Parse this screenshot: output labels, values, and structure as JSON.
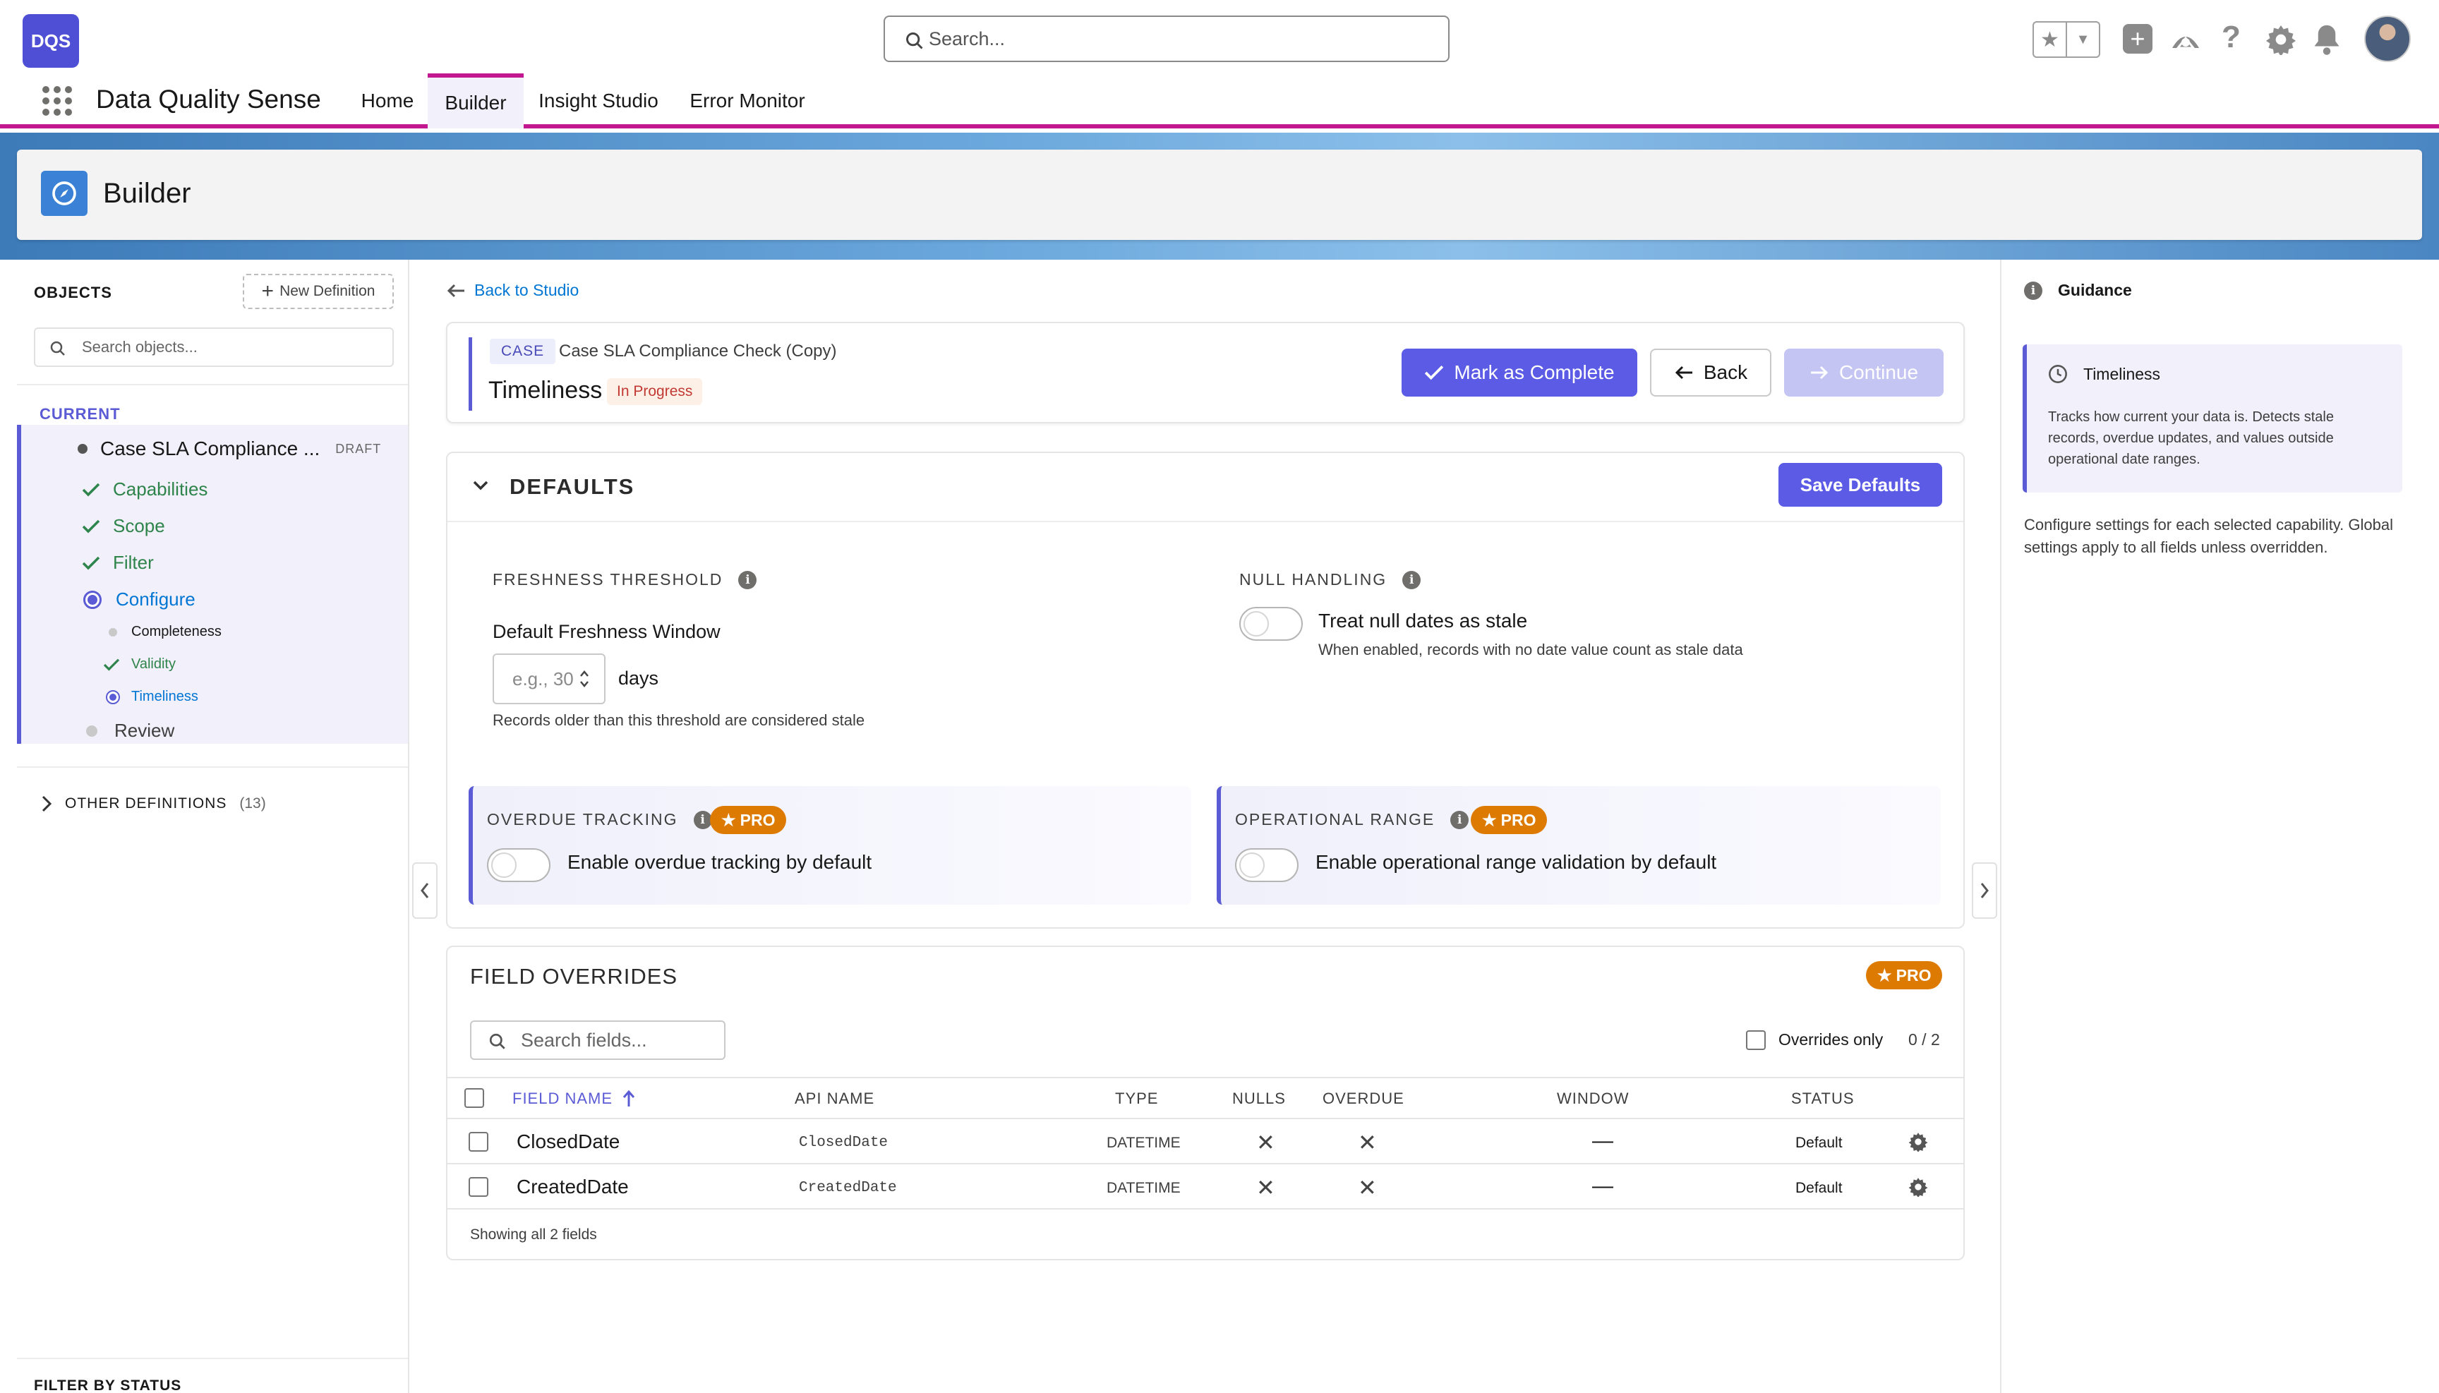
{
  "header": {
    "logo": "DQS",
    "search_placeholder": "Search...",
    "app_name": "Data Quality Sense",
    "nav": [
      {
        "label": "Home",
        "active": false
      },
      {
        "label": "Builder",
        "active": true
      },
      {
        "label": "Insight Studio",
        "active": false
      },
      {
        "label": "Error Monitor",
        "active": false
      }
    ],
    "icons": [
      "favorites-icon",
      "add-icon",
      "trailhead-icon",
      "help-icon",
      "settings-icon",
      "notifications-icon",
      "avatar"
    ]
  },
  "page_header": {
    "title": "Builder"
  },
  "sidebar": {
    "objects_label": "OBJECTS",
    "new_definition": "New Definition",
    "search_placeholder": "Search objects...",
    "current_label": "CURRENT",
    "current_item": {
      "name": "Case SLA Compliance ...",
      "badge": "DRAFT"
    },
    "steps": [
      {
        "label": "Capabilities",
        "state": "done"
      },
      {
        "label": "Scope",
        "state": "done"
      },
      {
        "label": "Filter",
        "state": "done"
      },
      {
        "label": "Configure",
        "state": "active"
      },
      {
        "label": "Review",
        "state": "pending"
      }
    ],
    "substeps": [
      {
        "label": "Completeness",
        "state": "pending"
      },
      {
        "label": "Validity",
        "state": "done"
      },
      {
        "label": "Timeliness",
        "state": "active"
      }
    ],
    "other_definitions": {
      "label": "OTHER DEFINITIONS",
      "count": "(13)"
    },
    "filter_by_status": "FILTER BY STATUS"
  },
  "content": {
    "back_link": "Back to Studio",
    "case_card": {
      "badge": "CASE",
      "name": "Case SLA Compliance Check (Copy)",
      "title": "Timeliness",
      "status": "In Progress",
      "mark_complete": "Mark as Complete",
      "back": "Back",
      "continue": "Continue"
    },
    "defaults": {
      "title": "DEFAULTS",
      "save_button": "Save Defaults",
      "freshness": {
        "label": "FRESHNESS THRESHOLD",
        "field_label": "Default Freshness Window",
        "placeholder": "e.g., 30",
        "unit": "days",
        "help": "Records older than this threshold are considered stale"
      },
      "null_handling": {
        "label": "NULL HANDLING",
        "toggle_label": "Treat null dates as stale",
        "help": "When enabled, records with no date value count as stale data",
        "enabled": false
      },
      "overdue": {
        "label": "OVERDUE TRACKING",
        "pro": "PRO",
        "toggle_label": "Enable overdue tracking by default",
        "enabled": false
      },
      "operational": {
        "label": "OPERATIONAL RANGE",
        "pro": "PRO",
        "toggle_label": "Enable operational range validation by default",
        "enabled": false
      }
    },
    "field_overrides": {
      "title": "FIELD OVERRIDES",
      "pro": "PRO",
      "search_placeholder": "Search fields...",
      "overrides_only": "Overrides only",
      "count": "0 / 2",
      "columns": [
        "FIELD NAME",
        "API NAME",
        "TYPE",
        "NULLS",
        "OVERDUE",
        "WINDOW",
        "STATUS"
      ],
      "rows": [
        {
          "field": "ClosedDate",
          "api": "ClosedDate",
          "type": "DATETIME",
          "nulls": "✕",
          "overdue": "✕",
          "window": "—",
          "status": "Default"
        },
        {
          "field": "CreatedDate",
          "api": "CreatedDate",
          "type": "DATETIME",
          "nulls": "✕",
          "overdue": "✕",
          "window": "—",
          "status": "Default"
        }
      ],
      "footer": "Showing all 2 fields"
    }
  },
  "guidance": {
    "title": "Guidance",
    "box_title": "Timeliness",
    "box_text": "Tracks how current your data is. Detects stale records, overdue updates, and values outside operational date ranges.",
    "note": "Configure settings for each selected capability. Global settings apply to all fields unless overridden."
  },
  "colors": {
    "brand": "#5b5be6",
    "accent": "#c2178f",
    "success": "#2e844a",
    "link": "#0176d3",
    "pro": "#dd7a01"
  }
}
